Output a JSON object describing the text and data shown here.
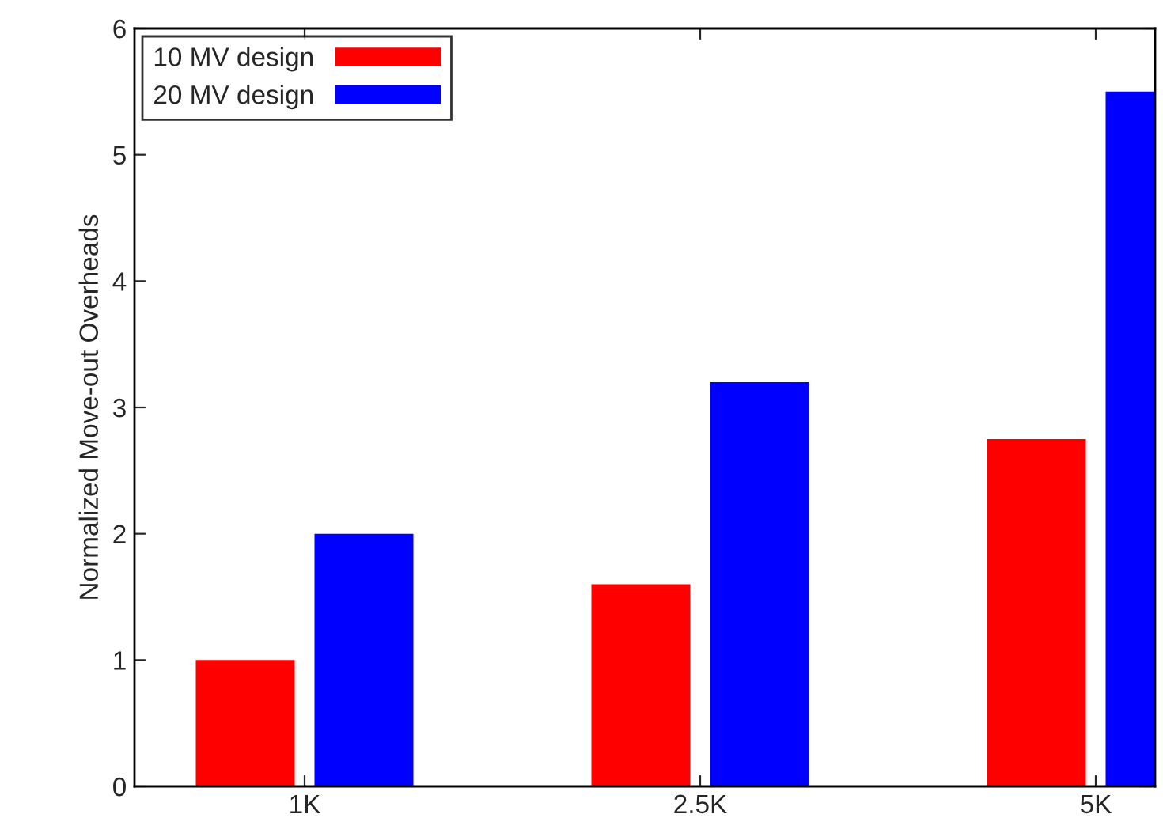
{
  "chart_data": {
    "type": "bar",
    "ylabel": "Normalized Move-out Overheads",
    "categories": [
      "1K",
      "2.5K",
      "5K"
    ],
    "series": [
      {
        "name": "10 MV design",
        "color": "#ff0000",
        "values": [
          1,
          1.6,
          2.75
        ]
      },
      {
        "name": "20 MV design",
        "color": "#0000ff",
        "values": [
          2,
          3.2,
          5.5
        ]
      }
    ],
    "ylim": [
      0,
      6
    ],
    "yticks": [
      0,
      1,
      2,
      3,
      4,
      5,
      6
    ],
    "grid": false,
    "legend": "top left"
  }
}
